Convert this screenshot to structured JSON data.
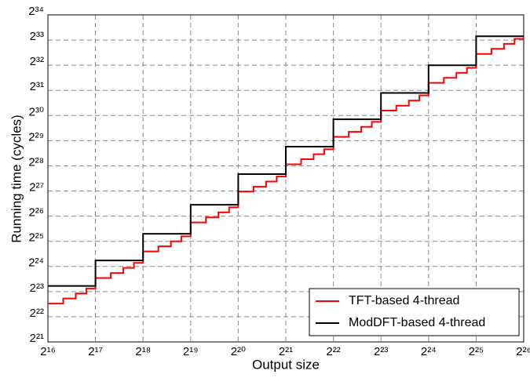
{
  "chart_data": {
    "type": "line",
    "xlabel": "Output size",
    "ylabel": "Running time (cycles)",
    "xscale": "log2",
    "yscale": "log2",
    "grid": true,
    "legend": "lower right",
    "step": "post",
    "xlim": [
      65536,
      67108864
    ],
    "ylim": [
      2097152,
      17179869184
    ],
    "xticks": [
      {
        "value": 65536,
        "label": "2¹⁶"
      },
      {
        "value": 131072,
        "label": "2¹⁷"
      },
      {
        "value": 262144,
        "label": "2¹⁸"
      },
      {
        "value": 524288,
        "label": "2¹⁹"
      },
      {
        "value": 1048576,
        "label": "2²⁰"
      },
      {
        "value": 2097152,
        "label": "2²¹"
      },
      {
        "value": 4194304,
        "label": "2²²"
      },
      {
        "value": 8388608,
        "label": "2²³"
      },
      {
        "value": 16777216,
        "label": "2²⁴"
      },
      {
        "value": 33554432,
        "label": "2²⁵"
      },
      {
        "value": 67108864,
        "label": "2²⁶"
      }
    ],
    "yticks": [
      {
        "value": 2097152,
        "label": "2²¹"
      },
      {
        "value": 4194304,
        "label": "2²²"
      },
      {
        "value": 8388608,
        "label": "2²³"
      },
      {
        "value": 16777216,
        "label": "2²⁴"
      },
      {
        "value": 33554432,
        "label": "2²⁵"
      },
      {
        "value": 67108864,
        "label": "2²⁶"
      },
      {
        "value": 134217728,
        "label": "2²⁷"
      },
      {
        "value": 268435456,
        "label": "2²⁸"
      },
      {
        "value": 536870912,
        "label": "2²⁹"
      },
      {
        "value": 1073741824,
        "label": "2³⁰"
      },
      {
        "value": 2147483648,
        "label": "2³¹"
      },
      {
        "value": 4294967296,
        "label": "2³²"
      },
      {
        "value": 8589934592,
        "label": "2³³"
      },
      {
        "value": 17179869184,
        "label": "2³⁴"
      }
    ],
    "series": [
      {
        "name": "TFT-based 4-thread",
        "color": "#ff0000",
        "x": [
          65536,
          81920,
          98304,
          114688,
          131072,
          163840,
          196608,
          229376,
          262144,
          327680,
          393216,
          458752,
          524288,
          655360,
          786432,
          917504,
          1048576,
          1310720,
          1572864,
          1835008,
          2097152,
          2621440,
          3145728,
          3670016,
          4194304,
          5242880,
          6291456,
          7340032,
          8388608,
          10485760,
          12582912,
          14680064,
          16777216,
          20971520,
          25165824,
          29360128,
          33554432,
          41943040,
          50331648,
          58720256,
          67108864
        ],
        "values": [
          6030000,
          6930000,
          7960000,
          9140000,
          12200000,
          14000000,
          16100000,
          18500000,
          25400000,
          29200000,
          33500000,
          38500000,
          56500000,
          64800000,
          74500000,
          85600000,
          132000000,
          151000000,
          174000000,
          200000000,
          280000000,
          322000000,
          370000000,
          425000000,
          596000000,
          684000000,
          786000000,
          903000000,
          1230000000,
          1410000000,
          1620000000,
          1870000000,
          2640000000,
          3030000000,
          3480000000,
          4000000000,
          5870000000,
          6740000000,
          7740000000,
          8890000000,
          8890000000
        ]
      },
      {
        "name": "ModDFT-based 4-thread",
        "color": "#000000",
        "x": [
          65536,
          131072,
          262144,
          524288,
          1048576,
          2097152,
          4194304,
          8388608,
          16777216,
          33554432,
          67108864
        ],
        "values": [
          9800000,
          19800000,
          41300000,
          91700000,
          214000000,
          455000000,
          968000000,
          2000000000,
          4290000000,
          9530000000,
          9530000000
        ]
      }
    ]
  }
}
